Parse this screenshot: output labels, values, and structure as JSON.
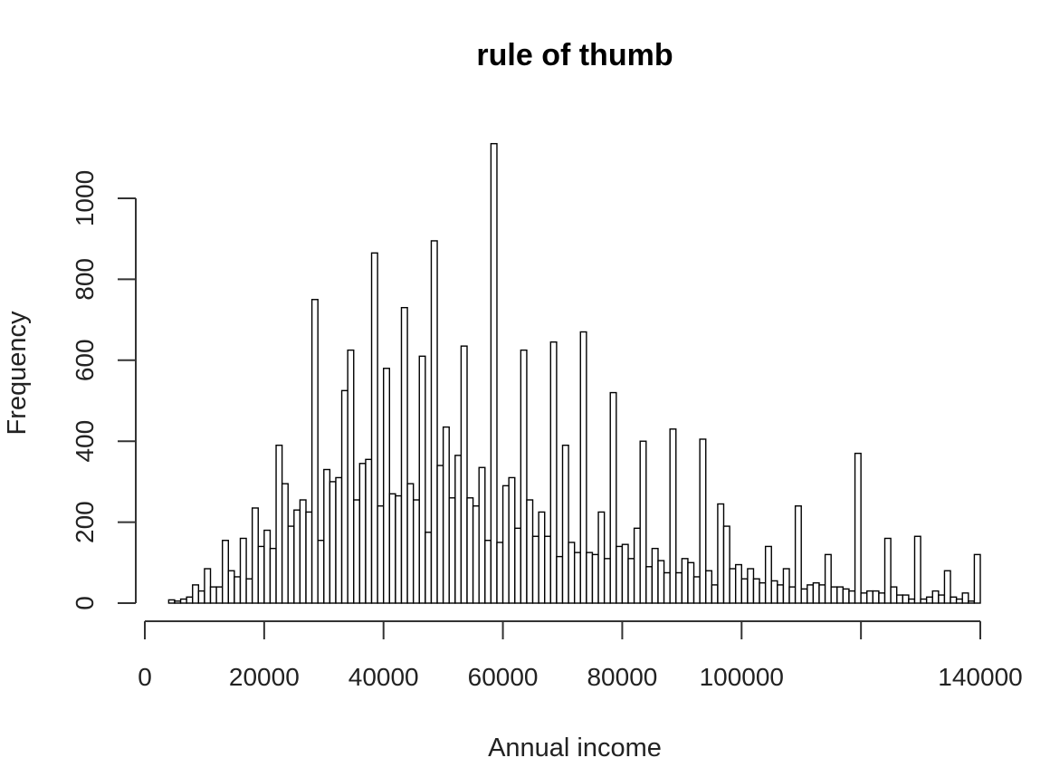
{
  "chart_data": {
    "type": "bar",
    "title": "rule of thumb",
    "xlabel": "Annual income",
    "ylabel": "Frequency",
    "xlim": [
      0,
      140000
    ],
    "ylim": [
      0,
      1000
    ],
    "bin_width": 1000,
    "x_ticks": [
      0,
      20000,
      40000,
      60000,
      80000,
      100000,
      120000,
      140000
    ],
    "x_tick_labels": [
      "0",
      "20000",
      "40000",
      "60000",
      "80000",
      "100000",
      "",
      "140000"
    ],
    "y_ticks": [
      0,
      200,
      400,
      600,
      800,
      1000
    ],
    "y_tick_labels": [
      "0",
      "200",
      "400",
      "600",
      "800",
      "1000"
    ],
    "grid": false,
    "legend": "none",
    "x": [
      4500,
      5500,
      6500,
      7500,
      8500,
      9500,
      10500,
      11500,
      12500,
      13500,
      14500,
      15500,
      16500,
      17500,
      18500,
      19500,
      20500,
      21500,
      22500,
      23500,
      24500,
      25500,
      26500,
      27500,
      28500,
      29500,
      30500,
      31500,
      32500,
      33500,
      34500,
      35500,
      36500,
      37500,
      38500,
      39500,
      40500,
      41500,
      42500,
      43500,
      44500,
      45500,
      46500,
      47500,
      48500,
      49500,
      50500,
      51500,
      52500,
      53500,
      54500,
      55500,
      56500,
      57500,
      58500,
      59500,
      60500,
      61500,
      62500,
      63500,
      64500,
      65500,
      66500,
      67500,
      68500,
      69500,
      70500,
      71500,
      72500,
      73500,
      74500,
      75500,
      76500,
      77500,
      78500,
      79500,
      80500,
      81500,
      82500,
      83500,
      84500,
      85500,
      86500,
      87500,
      88500,
      89500,
      90500,
      91500,
      92500,
      93500,
      94500,
      95500,
      96500,
      97500,
      98500,
      99500,
      100500,
      101500,
      102500,
      103500,
      104500,
      105500,
      106500,
      107500,
      108500,
      109500,
      110500,
      111500,
      112500,
      113500,
      114500,
      115500,
      116500,
      117500,
      118500,
      119500,
      120500,
      121500,
      122500,
      123500,
      124500,
      125500,
      126500,
      127500,
      128500,
      129500,
      130500,
      131500,
      132500,
      133500,
      134500,
      135500,
      136500,
      137500,
      138500,
      139500
    ],
    "values": [
      8,
      5,
      10,
      15,
      45,
      30,
      85,
      40,
      40,
      155,
      80,
      65,
      160,
      60,
      235,
      140,
      180,
      135,
      390,
      295,
      190,
      230,
      255,
      225,
      750,
      155,
      330,
      300,
      310,
      525,
      625,
      255,
      345,
      355,
      865,
      240,
      580,
      270,
      265,
      730,
      295,
      255,
      610,
      175,
      895,
      340,
      435,
      260,
      365,
      635,
      260,
      240,
      335,
      155,
      1135,
      150,
      290,
      310,
      185,
      625,
      255,
      165,
      225,
      165,
      645,
      115,
      390,
      150,
      125,
      670,
      125,
      120,
      225,
      110,
      520,
      140,
      145,
      110,
      185,
      400,
      90,
      135,
      105,
      75,
      430,
      75,
      110,
      100,
      65,
      405,
      80,
      45,
      245,
      190,
      85,
      95,
      60,
      85,
      60,
      50,
      140,
      55,
      45,
      85,
      40,
      240,
      35,
      45,
      50,
      45,
      120,
      40,
      40,
      35,
      30,
      370,
      25,
      30,
      30,
      25,
      160,
      40,
      20,
      20,
      10,
      165,
      10,
      15,
      30,
      20,
      80,
      15,
      10,
      25,
      5,
      120
    ]
  }
}
